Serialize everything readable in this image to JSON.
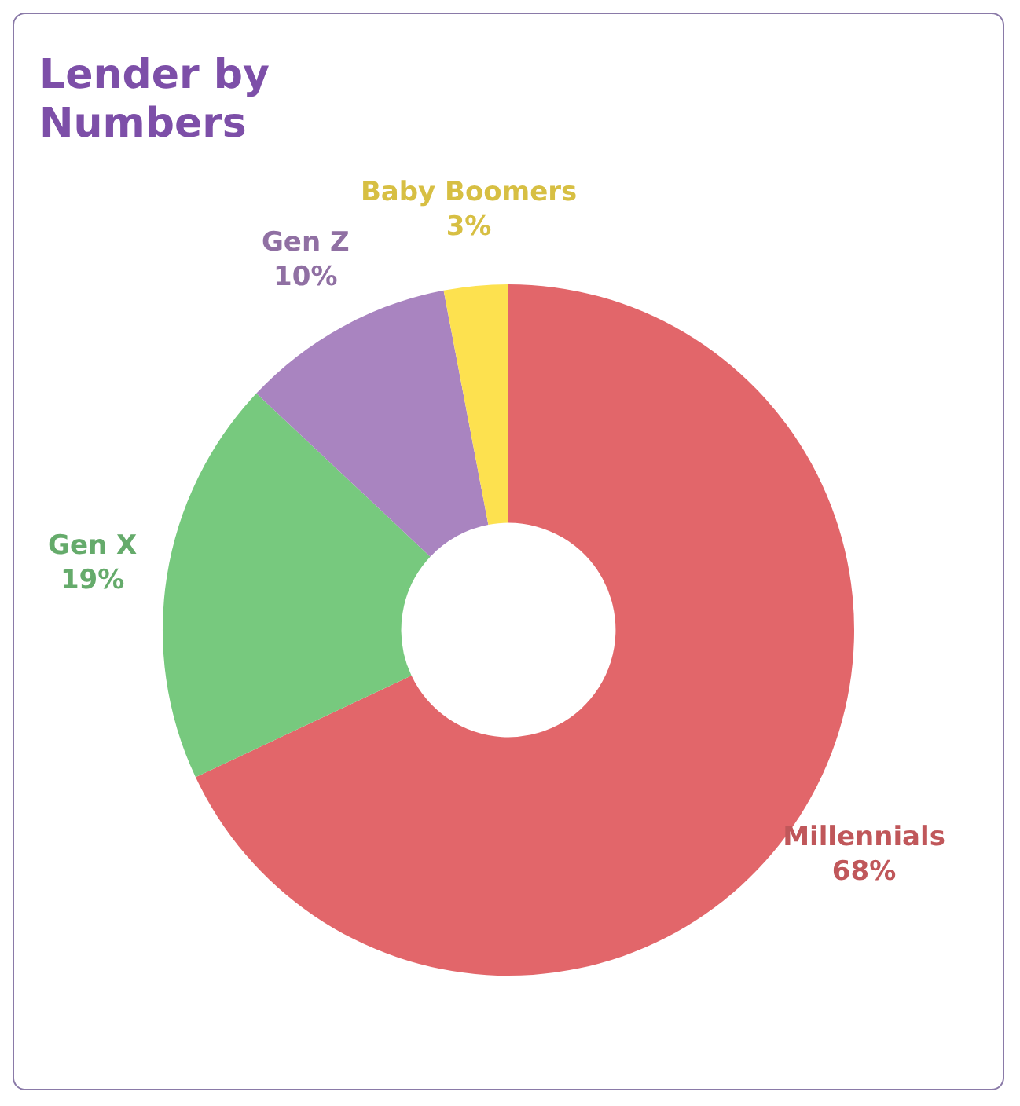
{
  "chart_data": {
    "type": "donut",
    "title": "Lender by Numbers",
    "categories": [
      "Millennials",
      "Gen X",
      "Gen Z",
      "Baby Boomers"
    ],
    "values": [
      68,
      19,
      10,
      3
    ],
    "colors": [
      "#e2666a",
      "#77c97e",
      "#a984c0",
      "#fde14f"
    ],
    "value_labels": [
      "68%",
      "19%",
      "10%",
      "3%"
    ],
    "legend": false
  }
}
